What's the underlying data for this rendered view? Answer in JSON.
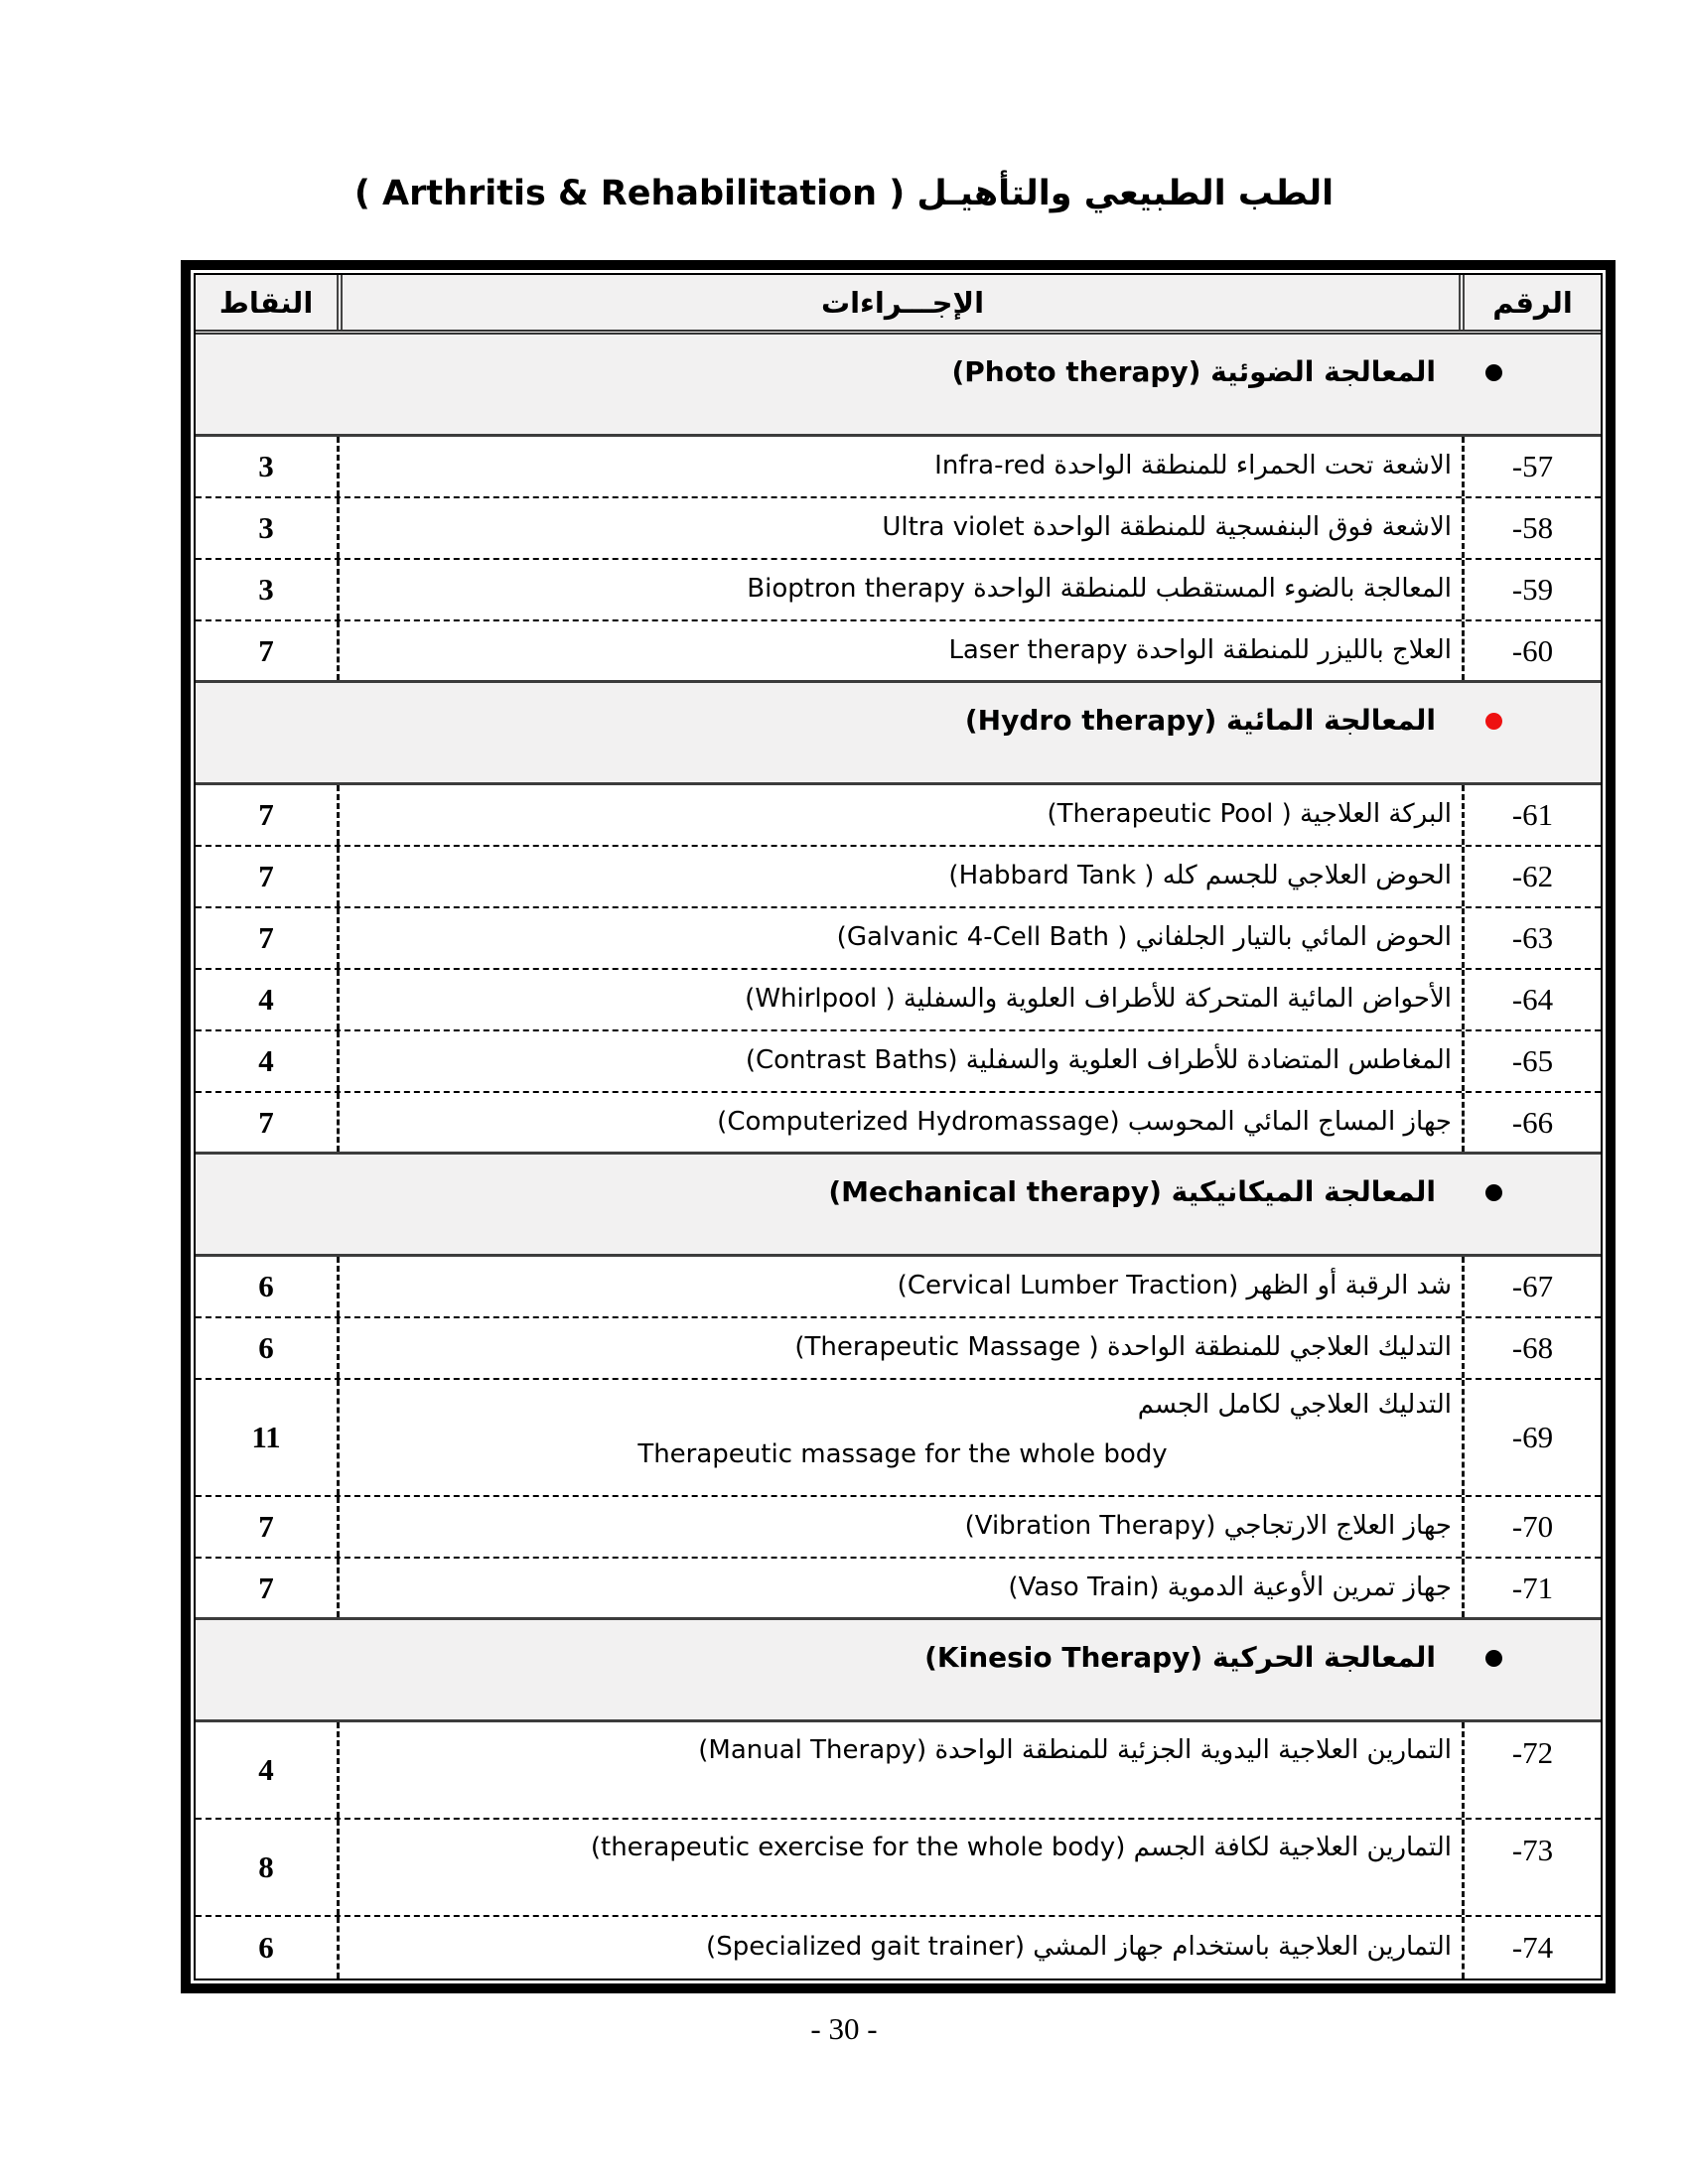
{
  "title": "الطب الطبيعي والتأهيـل ( Arthritis & Rehabilitation )",
  "page_number": "- 30 -",
  "colors": {
    "header-bg": "#f2f1f1",
    "section-bg": "#f2f1f1",
    "bullet-black": "#000000",
    "bullet-red": "#ee1111"
  },
  "table": {
    "headers": {
      "points": "النقاط",
      "procedures": "الإجـــراءات",
      "number": "الرقم"
    },
    "rows": [
      {
        "type": "section",
        "bullet_color": "#000000",
        "label": "المعالجة الضوئية (Photo therapy)"
      },
      {
        "type": "item",
        "number": "57-",
        "procedure": "الاشعة تحت الحمراء للمنطقة الواحدة Infra-red",
        "points": "3"
      },
      {
        "type": "item",
        "number": "58-",
        "procedure": "الاشعة فوق البنفسجية للمنطقة الواحدة Ultra violet",
        "points": "3"
      },
      {
        "type": "item",
        "number": "59-",
        "procedure": "المعالجة بالضوء المستقطب للمنطقة الواحدة Bioptron therapy",
        "points": "3"
      },
      {
        "type": "item",
        "number": "60-",
        "procedure": "العلاج بالليزر للمنطقة الواحدة Laser therapy",
        "points": "7"
      },
      {
        "type": "section",
        "bullet_color": "#ee1111",
        "label": "المعالجة المائية (Hydro therapy)"
      },
      {
        "type": "item",
        "number": "61-",
        "procedure": "البركة العلاجية ( Therapeutic Pool)",
        "points": "7"
      },
      {
        "type": "item",
        "number": "62-",
        "procedure": "الحوض العلاجي للجسم كله ( Habbard Tank)",
        "points": "7"
      },
      {
        "type": "item",
        "number": "63-",
        "procedure": "الحوض المائي بالتيار الجلفاني ( Galvanic 4-Cell Bath)",
        "points": "7"
      },
      {
        "type": "item",
        "number": "64-",
        "procedure": "الأحواض المائية المتحركة للأطراف العلوية والسفلية ( Whirlpool)",
        "points": "4"
      },
      {
        "type": "item",
        "number": "65-",
        "procedure": "المغاطس المتضادة للأطراف العلوية والسفلية (Contrast Baths)",
        "points": "4"
      },
      {
        "type": "item",
        "number": "66-",
        "procedure": "جهاز المساج المائي المحوسب (Computerized Hydromassage)",
        "points": "7"
      },
      {
        "type": "section",
        "bullet_color": "#000000",
        "label": "المعالجة الميكانيكية (Mechanical therapy)"
      },
      {
        "type": "item",
        "number": "67-",
        "procedure": "شد الرقبة أو الظهر (Cervical Lumber Traction)",
        "points": "6"
      },
      {
        "type": "item",
        "number": "68-",
        "procedure": "التدليك العلاجي للمنطقة الواحدة ( Therapeutic Massage)",
        "points": "6"
      },
      {
        "type": "item",
        "number": "69-",
        "procedure_ar": "التدليك العلاجي لكامل الجسم",
        "procedure_en": "Therapeutic massage for the whole body",
        "points": "11"
      },
      {
        "type": "item",
        "number": "70-",
        "procedure": "جهاز العلاج الارتجاجي (Vibration Therapy)",
        "points": "7"
      },
      {
        "type": "item",
        "number": "71-",
        "procedure": "جهاز تمرين الأوعية الدموية (Vaso Train)",
        "points": "7"
      },
      {
        "type": "section",
        "bullet_color": "#000000",
        "label": "المعالجة الحركية (Kinesio Therapy)"
      },
      {
        "type": "item",
        "number": "72-",
        "procedure": "التمارين العلاجية اليدوية الجزئية للمنطقة الواحدة (Manual Therapy)",
        "points": "4"
      },
      {
        "type": "item",
        "number": "73-",
        "procedure": "التمارين العلاجية لكافة الجسم (therapeutic exercise for the whole body)",
        "points": "8"
      },
      {
        "type": "item",
        "number": "74-",
        "procedure": "التمارين العلاجية باستخدام جهاز المشي (Specialized gait trainer)",
        "points": "6"
      }
    ]
  }
}
